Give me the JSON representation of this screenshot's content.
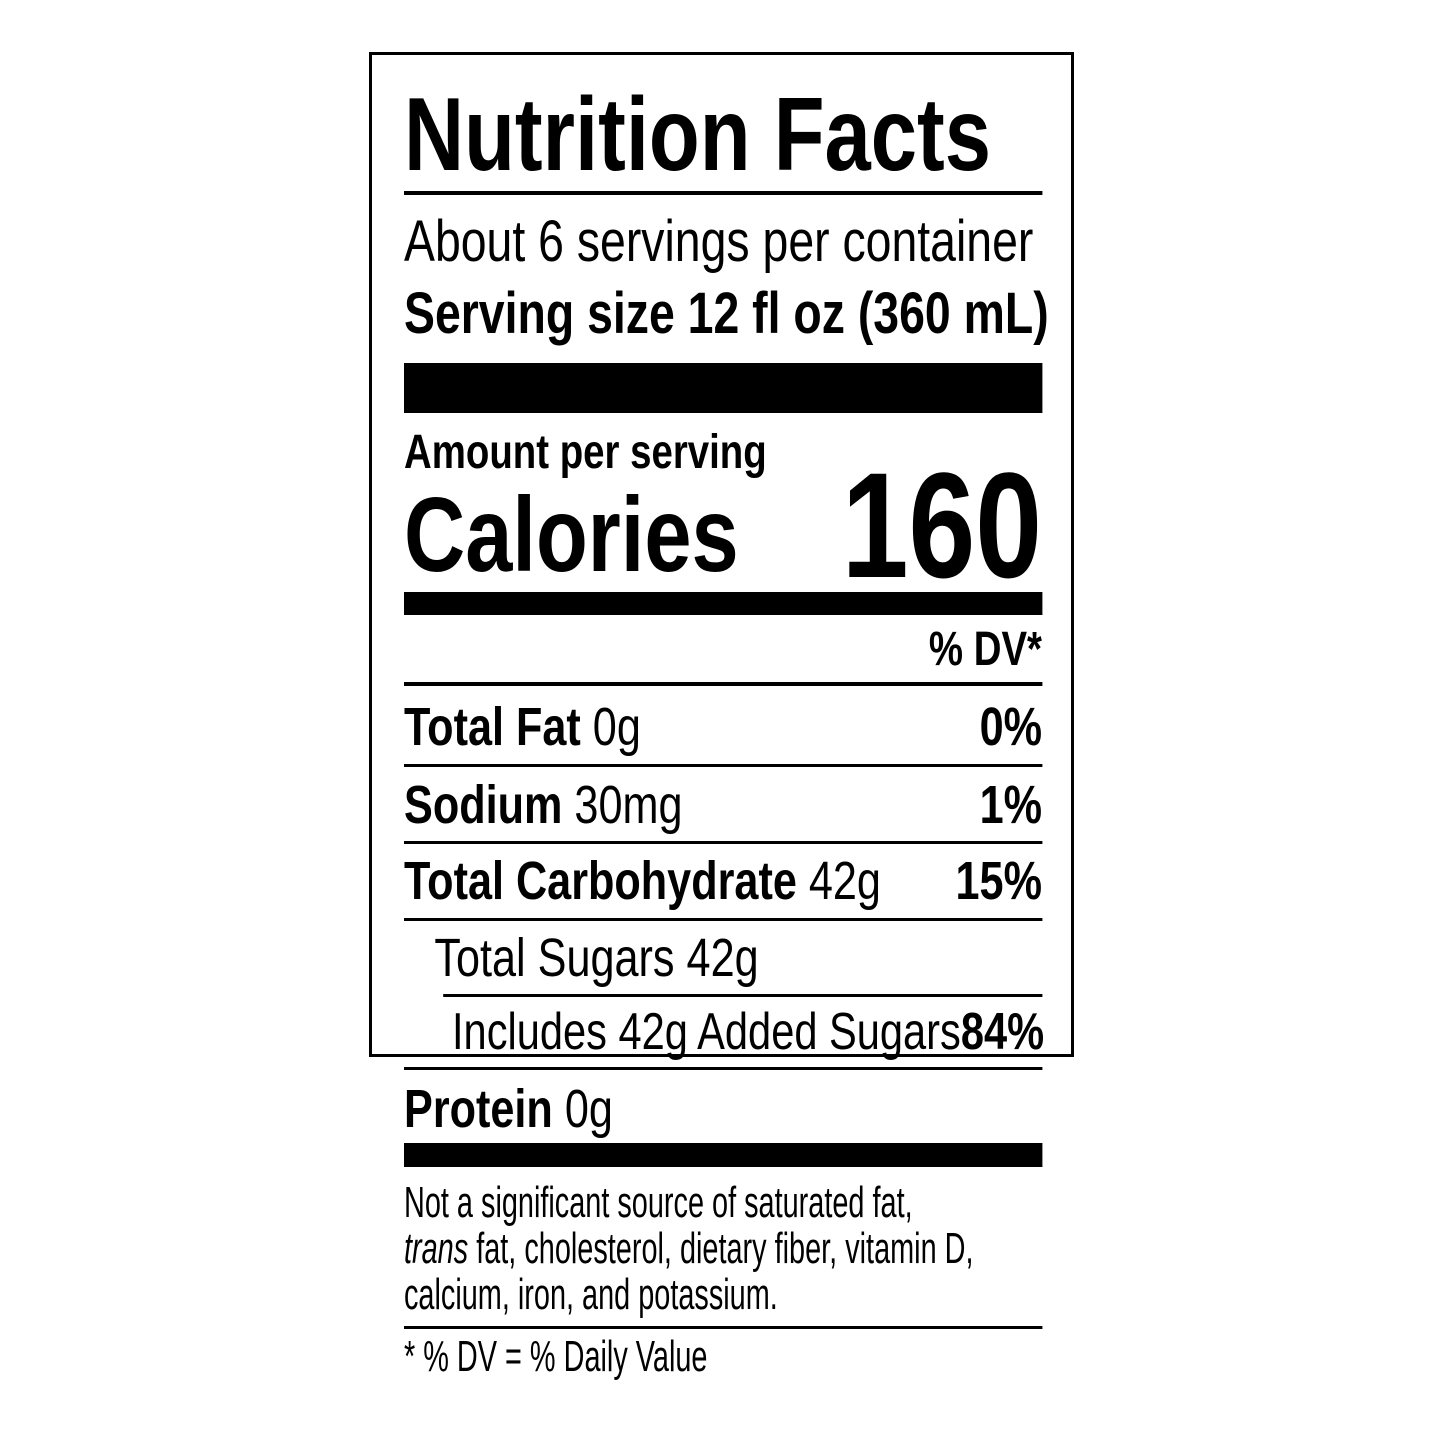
{
  "title": "Nutrition Facts",
  "servings": "About 6 servings per container",
  "serving_size": "Serving size 12 fl oz (360 mL)",
  "amount_per_serving": "Amount per serving",
  "calories": {
    "label": "Calories",
    "value": "160"
  },
  "dv_header": "% DV*",
  "nutrients": [
    {
      "name": "Total Fat",
      "amount": "0g",
      "dv": "0%"
    },
    {
      "name": "Sodium",
      "amount": "30mg",
      "dv": "1%"
    },
    {
      "name": "Total Carbohydrate",
      "amount": "42g",
      "dv": "15%"
    },
    {
      "name": "Total Sugars",
      "amount": "42g"
    },
    {
      "name": "Includes 42g Added Sugars",
      "dv": "84%"
    },
    {
      "name": "Protein",
      "amount": "0g"
    }
  ],
  "footnote": {
    "before": "Not a significant source of saturated fat,",
    "italic": "trans",
    "after": "fat, cholesterol, dietary fiber, vitamin D, calcium, iron, and potassium."
  },
  "footer": "* % DV = % Daily Value"
}
